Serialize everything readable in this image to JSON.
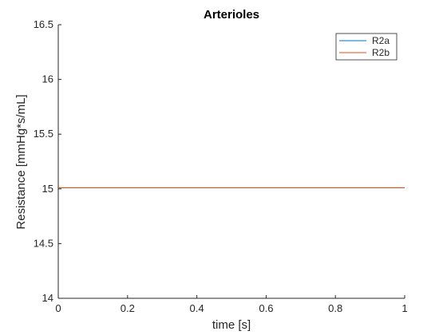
{
  "chart_data": {
    "type": "line",
    "title": "Arterioles",
    "xlabel": "time [s]",
    "ylabel": "Resistance [mmHg*s/mL]",
    "xlim": [
      0,
      1
    ],
    "ylim": [
      14,
      16.5
    ],
    "xticks": [
      0,
      0.2,
      0.4,
      0.6,
      0.8,
      1
    ],
    "xtick_labels": [
      "0",
      "0.2",
      "0.4",
      "0.6",
      "0.8",
      "1"
    ],
    "yticks": [
      14,
      14.5,
      15,
      15.5,
      16,
      16.5
    ],
    "ytick_labels": [
      "14",
      "14.5",
      "15",
      "15.5",
      "16",
      "16.5"
    ],
    "grid": false,
    "legend_position": "top-right",
    "series": [
      {
        "name": "R2a",
        "color": "#0072BD",
        "x": [
          0,
          1
        ],
        "y": [
          15.01,
          15.01
        ]
      },
      {
        "name": "R2b",
        "color": "#D95319",
        "x": [
          0,
          1
        ],
        "y": [
          15.01,
          15.01
        ]
      }
    ]
  }
}
